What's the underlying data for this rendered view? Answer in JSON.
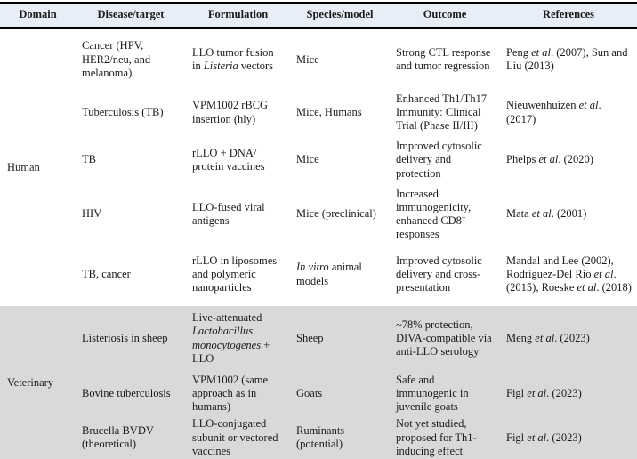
{
  "table": {
    "colors": {
      "header_bg": "#e8eef8",
      "human_section_bg": "#ffffff",
      "veterinary_section_bg": "#d9d9d9",
      "rule": "#000000",
      "text": "#1b1b1b"
    },
    "columns": [
      "Domain",
      "Disease/target",
      "Formulation",
      "Species/model",
      "Outcome",
      "References"
    ],
    "domains": [
      {
        "label": "Human",
        "rows": 5
      },
      {
        "label": "Veterinary",
        "rows": 3
      }
    ],
    "rows": [
      {
        "disease": "Cancer (HPV, HER2/neu, and melanoma)",
        "formulation": [
          {
            "t": "LLO tumor fusion in "
          },
          {
            "t": "Listeria",
            "i": true
          },
          {
            "t": " vectors"
          }
        ],
        "species": "Mice",
        "outcome": "Strong CTL response and tumor regression",
        "references": [
          {
            "t": "Peng "
          },
          {
            "t": "et al",
            "i": true
          },
          {
            "t": ". (2007), Sun and Liu (2013)"
          }
        ]
      },
      {
        "disease": "Tuberculosis (TB)",
        "formulation": "VPM1002 rBCG insertion (hly)",
        "species": "Mice, Humans",
        "outcome": "Enhanced Th1/Th17 Immunity: Clinical Trial (Phase II/III)",
        "references": [
          {
            "t": "Nieuwenhuizen "
          },
          {
            "t": "et al",
            "i": true
          },
          {
            "t": ". (2017)"
          }
        ]
      },
      {
        "disease": "TB",
        "formulation": "rLLO + DNA/ protein vaccines",
        "species": "Mice",
        "outcome": "Improved cytosolic delivery and protection",
        "references": [
          {
            "t": "Phelps "
          },
          {
            "t": "et al",
            "i": true
          },
          {
            "t": ". (2020)"
          }
        ]
      },
      {
        "disease": "HIV",
        "formulation": "LLO-fused viral antigens",
        "species": "Mice (preclinical)",
        "outcome": [
          {
            "t": "Increased immunogenicity, enhanced CD8"
          },
          {
            "t": "+",
            "sup": true
          },
          {
            "t": " responses"
          }
        ],
        "references": [
          {
            "t": "Mata "
          },
          {
            "t": "et al",
            "i": true
          },
          {
            "t": ". (2001)"
          }
        ]
      },
      {
        "disease": "TB, cancer",
        "formulation": "rLLO in liposomes and polymeric nanoparticles",
        "species": [
          {
            "t": "In vitro",
            "i": true
          },
          {
            "t": " animal models"
          }
        ],
        "outcome": "Improved cytosolic delivery and cross-presentation",
        "references": [
          {
            "t": "Mandal and Lee (2002), Rodriguez-Del Rio "
          },
          {
            "t": "et al",
            "i": true
          },
          {
            "t": ". (2015), Roeske "
          },
          {
            "t": "et al",
            "i": true
          },
          {
            "t": ". (2018)"
          }
        ]
      },
      {
        "disease": "Listeriosis in sheep",
        "formulation": [
          {
            "t": "Live-attenuated "
          },
          {
            "t": "Lactobacillus monocytogenes",
            "i": true
          },
          {
            "t": " + LLO"
          }
        ],
        "species": "Sheep",
        "outcome": "~78% protection, DIVA-compatible via anti-LLO serology",
        "references": [
          {
            "t": "Meng "
          },
          {
            "t": "et al",
            "i": true
          },
          {
            "t": ". (2023)"
          }
        ]
      },
      {
        "disease": "Bovine tuberculosis",
        "formulation": "VPM1002 (same approach as in humans)",
        "species": "Goats",
        "outcome": "Safe and immunogenic in juvenile goats",
        "references": [
          {
            "t": "Figl "
          },
          {
            "t": "et al",
            "i": true
          },
          {
            "t": ". (2023)"
          }
        ]
      },
      {
        "disease": "Brucella BVDV (theoretical)",
        "formulation": "LLO-conjugated subunit or vectored vaccines",
        "species": "Ruminants (potential)",
        "outcome": "Not yet studied, proposed for Th1-inducing effect",
        "references": [
          {
            "t": "Figl "
          },
          {
            "t": "et al",
            "i": true
          },
          {
            "t": ". (2023)"
          }
        ]
      }
    ]
  }
}
